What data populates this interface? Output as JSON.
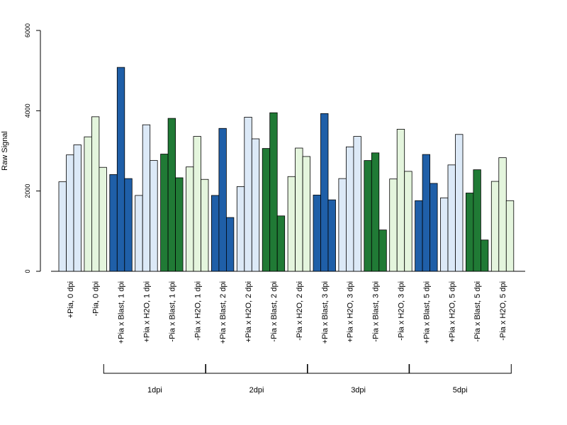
{
  "chart_data": {
    "type": "bar",
    "title": "",
    "xlabel": "",
    "ylabel": "Raw Signal",
    "ylim": [
      0,
      6000
    ],
    "yticks": [
      0,
      2000,
      4000,
      6000
    ],
    "grid": false,
    "legend": "none",
    "categories": [
      "+Pia, 0 dpi",
      "-Pia, 0 dpi",
      "+Pia x Blast, 1 dpi",
      "+Pia x H2O, 1 dpi",
      "-Pia x Blast, 1 dpi",
      "-Pia x H2O, 1 dpi",
      "+Pia x Blast, 2 dpi",
      "+Pia x H2O, 2 dpi",
      "-Pia x Blast, 2 dpi",
      "-Pia x H2O, 2 dpi",
      "+Pia x Blast, 3 dpi",
      "+Pia x H2O, 3 dpi",
      "-Pia x Blast, 3 dpi",
      "-Pia x H2O, 3 dpi",
      "+Pia x Blast, 5 dpi",
      "+Pia x H2O, 5 dpi",
      "-Pia x Blast, 5 dpi",
      "-Pia x H2O, 5 dpi"
    ],
    "category_colors": [
      "#dce9f7",
      "#e4f5dd",
      "#1f5fa8",
      "#dce9f7",
      "#207a35",
      "#e4f5dd",
      "#1f5fa8",
      "#dce9f7",
      "#207a35",
      "#e4f5dd",
      "#1f5fa8",
      "#dce9f7",
      "#207a35",
      "#e4f5dd",
      "#1f5fa8",
      "#dce9f7",
      "#207a35",
      "#e4f5dd"
    ],
    "replicates": [
      [
        2230,
        2900,
        3150
      ],
      [
        3350,
        3850,
        2590
      ],
      [
        2410,
        5080,
        2310
      ],
      [
        1890,
        3650,
        2760
      ],
      [
        2920,
        3810,
        2330
      ],
      [
        2600,
        3360,
        2290
      ],
      [
        1890,
        3560,
        1340
      ],
      [
        2110,
        3840,
        3300
      ],
      [
        3060,
        3950,
        1380
      ],
      [
        2360,
        3070,
        2860
      ],
      [
        1900,
        3930,
        1780
      ],
      [
        2310,
        3100,
        3360
      ],
      [
        2760,
        2950,
        1030
      ],
      [
        2300,
        3540,
        2490
      ],
      [
        1760,
        2910,
        2190
      ],
      [
        1830,
        2650,
        3410
      ],
      [
        1950,
        2530,
        780
      ],
      [
        2240,
        2830,
        1760
      ]
    ],
    "groups": [
      {
        "label": "1dpi",
        "from": 2,
        "to": 5
      },
      {
        "label": "2dpi",
        "from": 6,
        "to": 9
      },
      {
        "label": "3dpi",
        "from": 10,
        "to": 13
      },
      {
        "label": "5dpi",
        "from": 14,
        "to": 17
      }
    ]
  }
}
